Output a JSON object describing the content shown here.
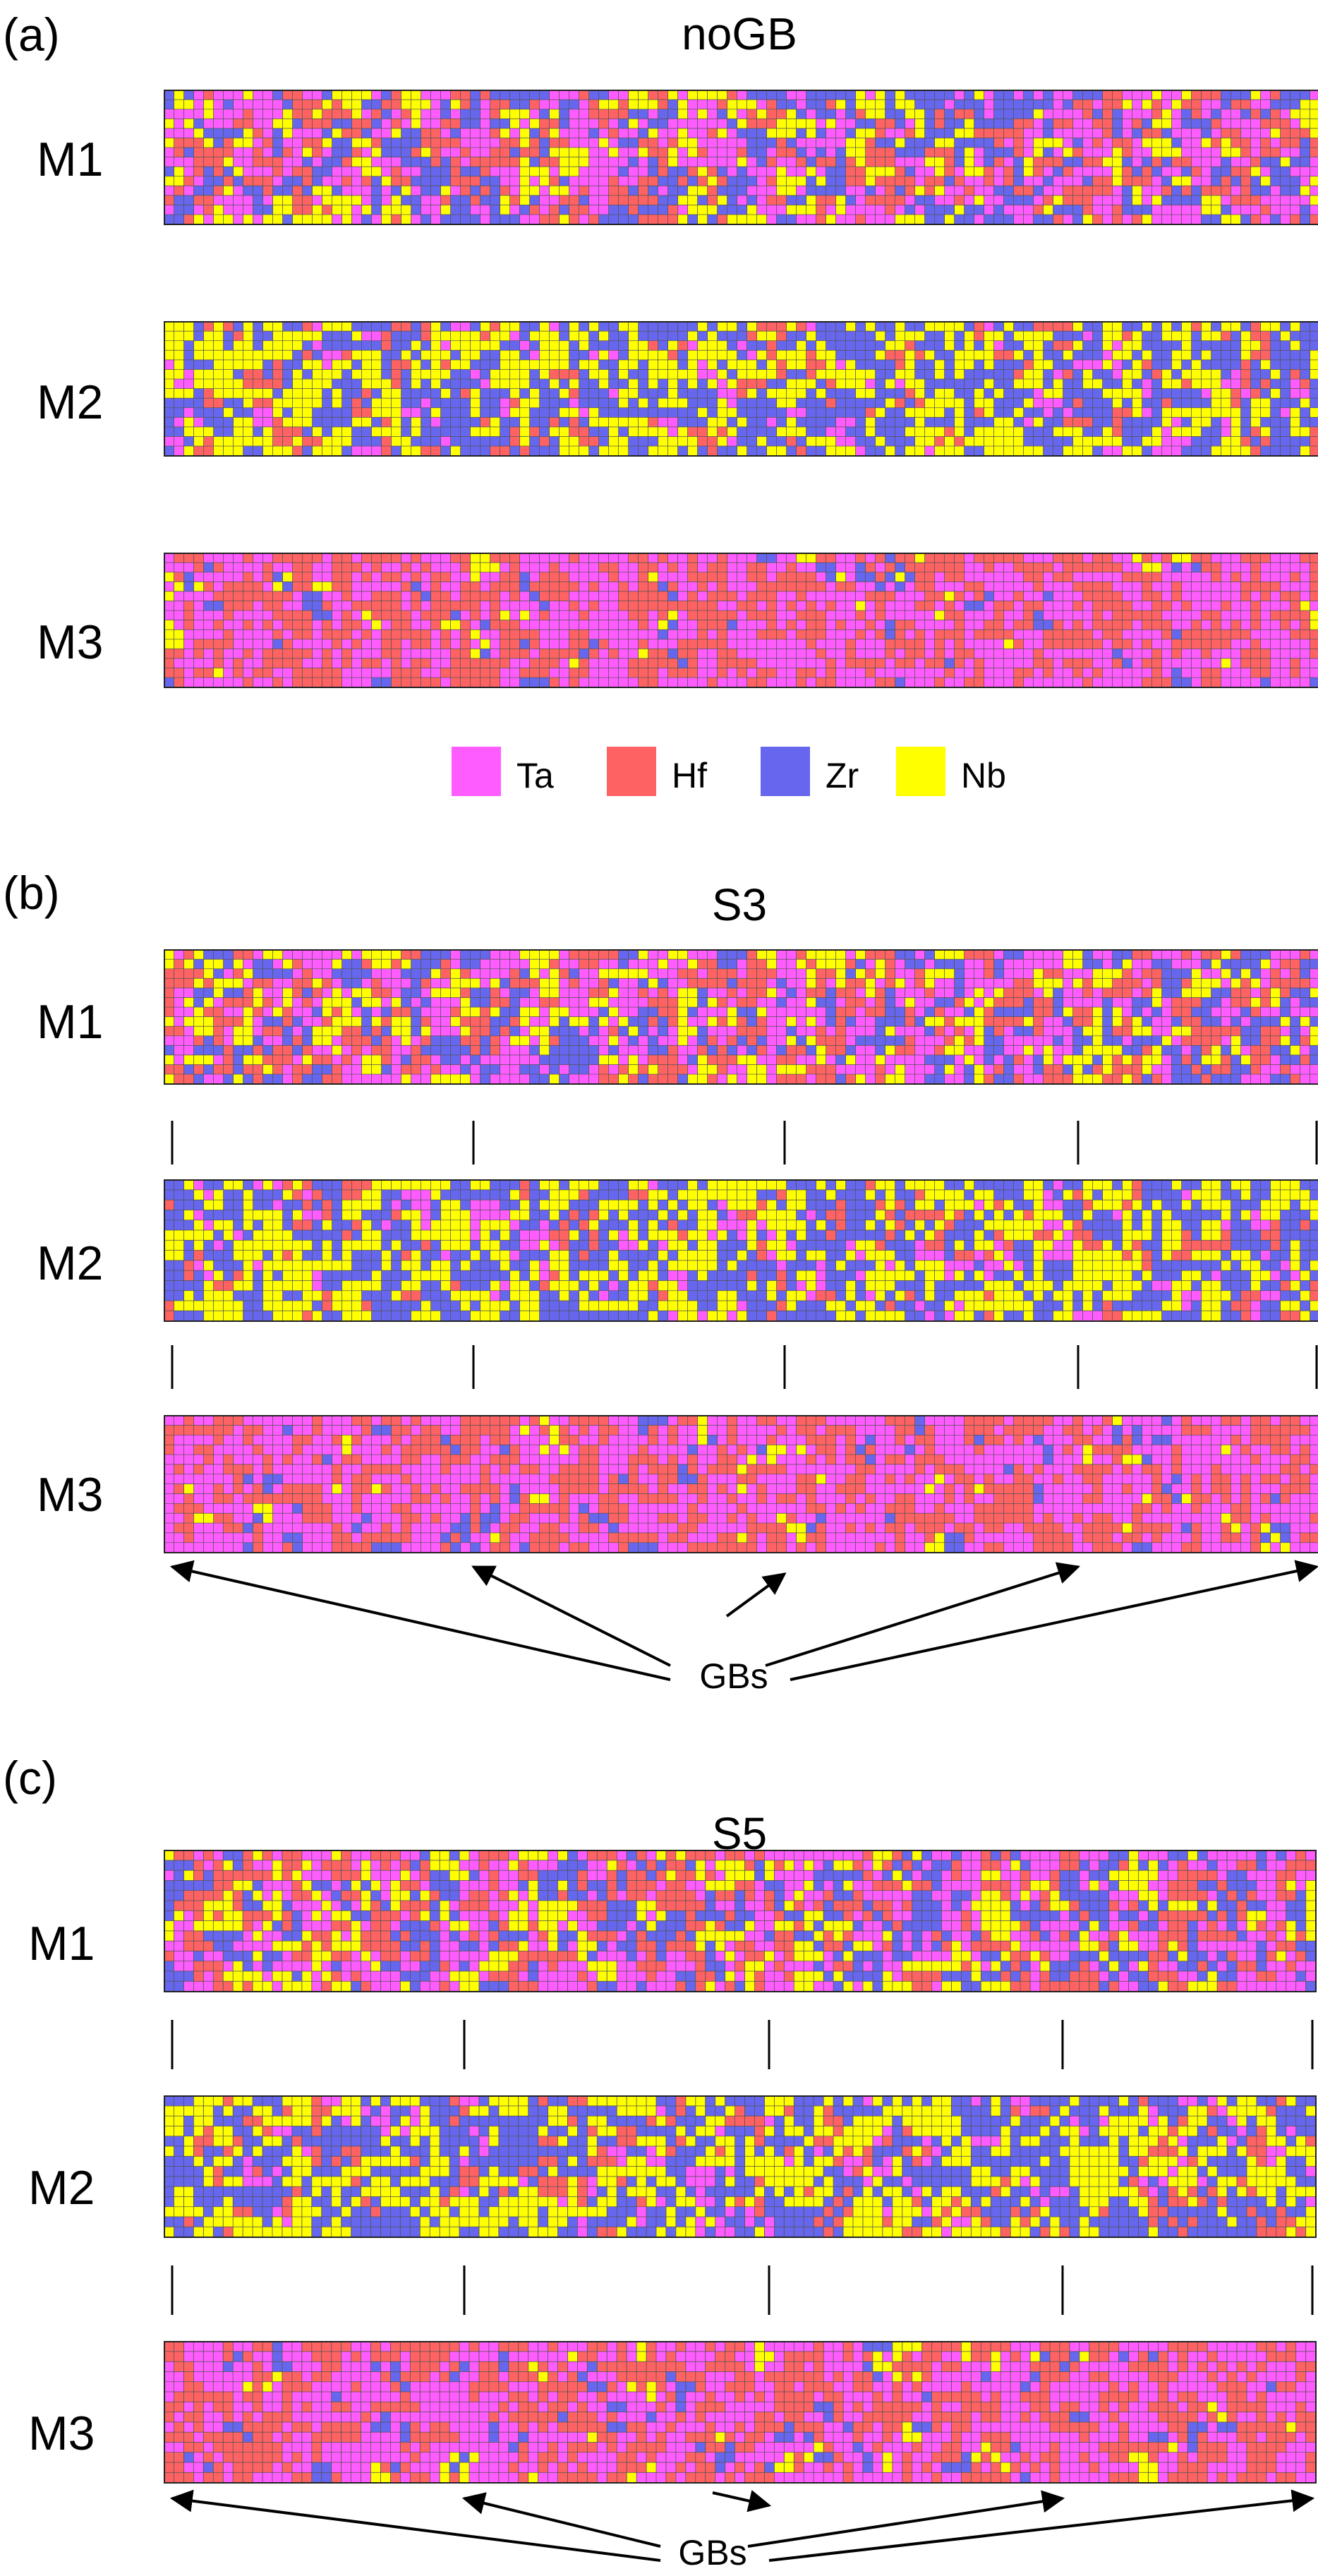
{
  "panels": [
    {
      "letter": "(a)",
      "title": "noGB",
      "rows": [
        {
          "label": "M1",
          "grains": 1
        },
        {
          "label": "M2",
          "grains": 1
        },
        {
          "label": "M3",
          "grains": 1
        }
      ],
      "gb_annotation": null
    },
    {
      "letter": "(b)",
      "title": "S3",
      "rows": [
        {
          "label": "M1",
          "grains": 4
        },
        {
          "label": "M2",
          "grains": 4
        },
        {
          "label": "M3",
          "grains": 4
        }
      ],
      "gb_annotation": "GBs"
    },
    {
      "letter": "(c)",
      "title": "S5",
      "rows": [
        {
          "label": "M1",
          "grains": 4
        },
        {
          "label": "M2",
          "grains": 4
        },
        {
          "label": "M3",
          "grains": 4
        }
      ],
      "gb_annotation": "GBs"
    }
  ],
  "legend": [
    {
      "label": "Ta",
      "color": "#ff5cff"
    },
    {
      "label": "Hf",
      "color": "#ff6262"
    },
    {
      "label": "Zr",
      "color": "#6666ee"
    },
    {
      "label": "Nb",
      "color": "#ffff00"
    }
  ],
  "composition": {
    "M1": {
      "Ta": 0.3,
      "Hf": 0.25,
      "Zr": 0.25,
      "Nb": 0.2
    },
    "M2": {
      "Ta": 0.08,
      "Hf": 0.1,
      "Zr": 0.4,
      "Nb": 0.42
    },
    "M3": {
      "Ta": 0.48,
      "Hf": 0.42,
      "Zr": 0.06,
      "Nb": 0.04
    }
  }
}
